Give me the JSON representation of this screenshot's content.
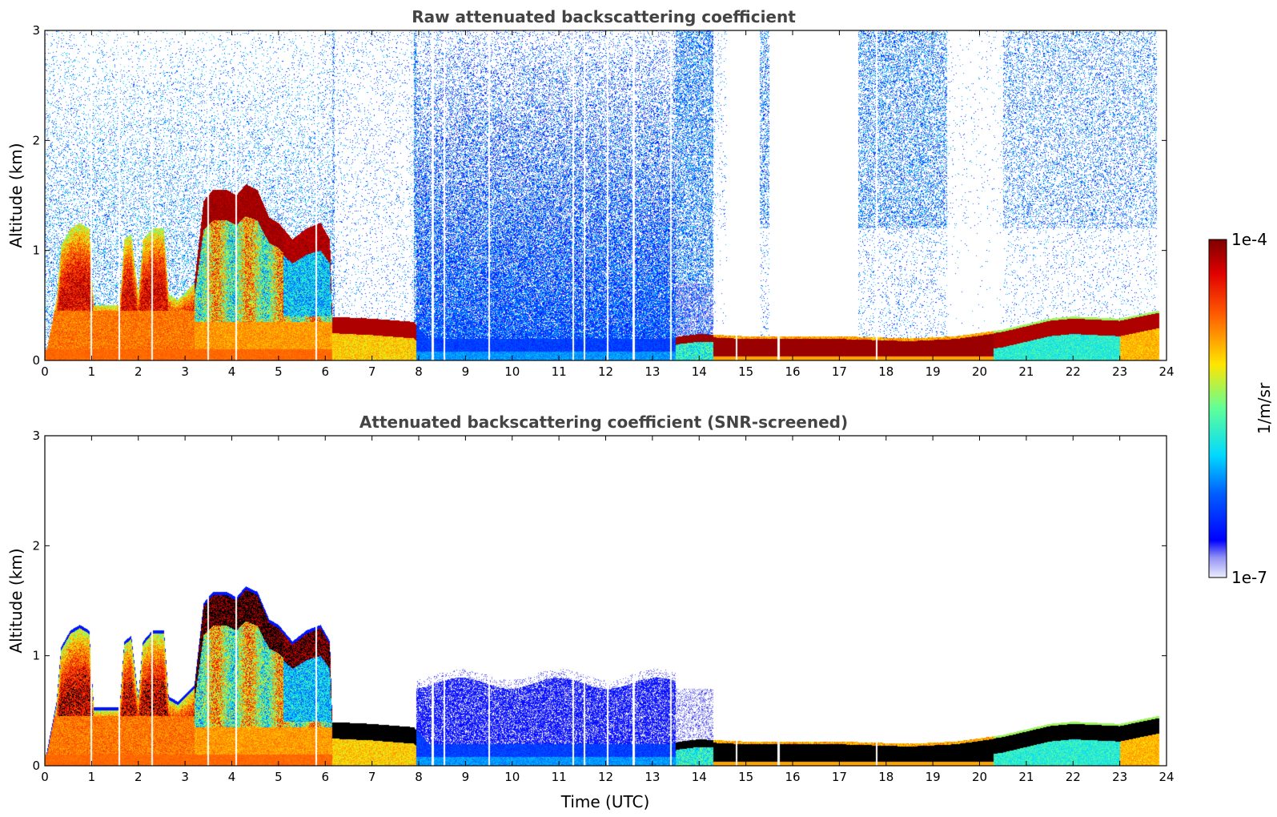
{
  "chart_data": [
    {
      "type": "heatmap",
      "title": "Raw attenuated backscattering coefficient",
      "xlabel": "",
      "ylabel": "Altitude (km)",
      "xlim": [
        0,
        24
      ],
      "ylim": [
        0,
        3
      ],
      "xticks": [
        "0",
        "1",
        "2",
        "3",
        "4",
        "5",
        "6",
        "7",
        "8",
        "9",
        "10",
        "11",
        "12",
        "13",
        "14",
        "15",
        "16",
        "17",
        "18",
        "19",
        "20",
        "21",
        "22",
        "23",
        "24"
      ],
      "yticks": [
        "0",
        "1",
        "2",
        "3"
      ],
      "screened": false
    },
    {
      "type": "heatmap",
      "title": "Attenuated backscattering coefficient (SNR-screened)",
      "xlabel": "Time (UTC)",
      "ylabel": "Altitude (km)",
      "xlim": [
        0,
        24
      ],
      "ylim": [
        0,
        3
      ],
      "xticks": [
        "0",
        "1",
        "2",
        "3",
        "4",
        "5",
        "6",
        "7",
        "8",
        "9",
        "10",
        "11",
        "12",
        "13",
        "14",
        "15",
        "16",
        "17",
        "18",
        "19",
        "20",
        "21",
        "22",
        "23",
        "24"
      ],
      "yticks": [
        "0",
        "1",
        "2",
        "3"
      ],
      "screened": true
    }
  ],
  "colorbar": {
    "label": "1/m/sr",
    "max_label": "1e-4",
    "min_label": "1e-7",
    "colormap": "jet",
    "range": [
      1e-07,
      0.0001
    ]
  },
  "colors": {
    "title": "#444444",
    "axis": "#000000",
    "background": "#ffffff"
  }
}
